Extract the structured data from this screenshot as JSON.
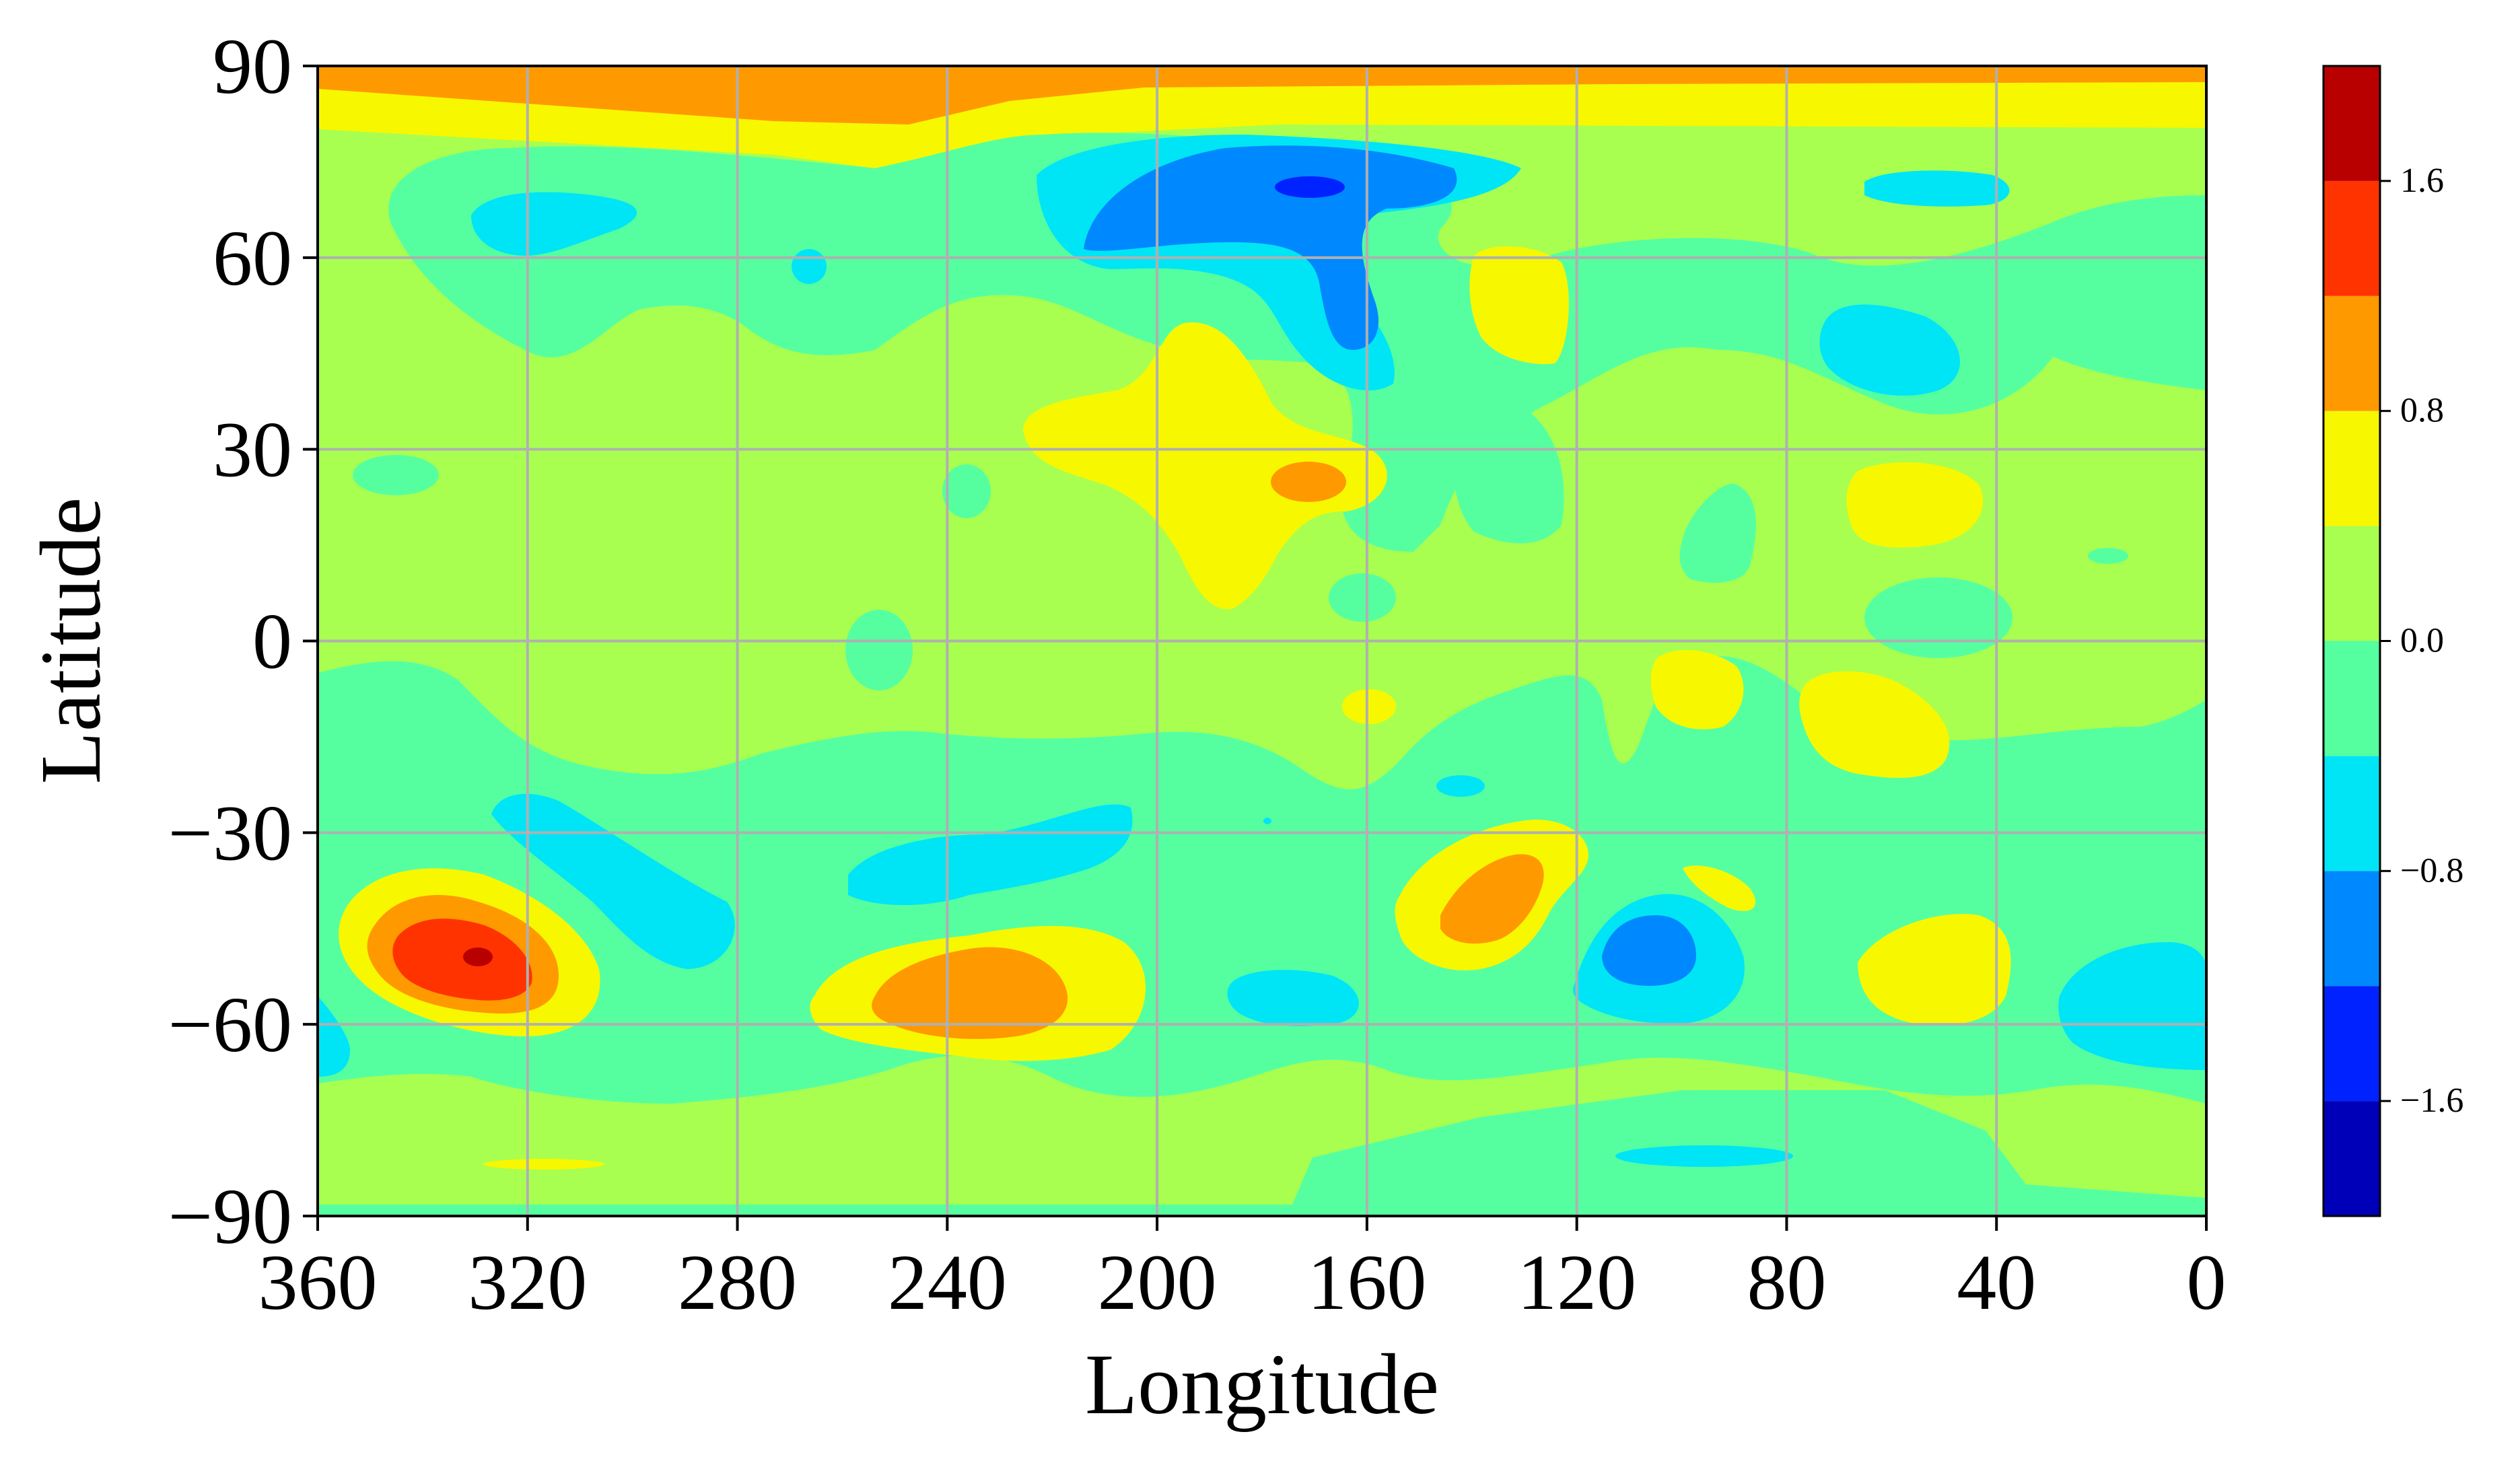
{
  "chart_data": {
    "type": "heatmap",
    "subtype": "filled-contour",
    "title": "",
    "xlabel": "Longitude",
    "ylabel": "Latitude",
    "xlim": [
      360,
      0
    ],
    "ylim": [
      -90,
      90
    ],
    "x_inverted": true,
    "grid": true,
    "xticks": [
      360,
      320,
      280,
      240,
      200,
      160,
      120,
      80,
      40,
      0
    ],
    "xtick_labels": [
      "360",
      "320",
      "280",
      "240",
      "200",
      "160",
      "120",
      "80",
      "40",
      "0"
    ],
    "yticks": [
      90,
      60,
      30,
      0,
      -30,
      -60,
      -90
    ],
    "ytick_labels": [
      "90",
      "60",
      "30",
      "0",
      "−30",
      "−60",
      "−90"
    ],
    "colorbar": {
      "levels": [
        -2.0,
        -1.6,
        -1.2,
        -0.8,
        -0.4,
        0.0,
        0.4,
        0.8,
        1.2,
        1.6,
        2.0
      ],
      "colors": [
        "#0000b8",
        "#0022ff",
        "#0088ff",
        "#00e5f5",
        "#55ffa0",
        "#a8ff50",
        "#f7f700",
        "#ff9900",
        "#ff3300",
        "#b80000"
      ],
      "ticks": [
        1.6,
        0.8,
        0.0,
        -0.8,
        -1.6
      ],
      "tick_labels": [
        "1.6",
        "0.8",
        "0.0",
        "−0.8",
        "−1.6"
      ]
    },
    "background_value": 0.2,
    "regions": [
      {
        "lon": 328,
        "lat": -50,
        "value": 1.8
      },
      {
        "lon": 328,
        "lat": -50,
        "value": 1.4
      },
      {
        "lon": 326,
        "lat": -50,
        "value": 1.0
      },
      {
        "lon": 324,
        "lat": -50,
        "value": 0.6
      },
      {
        "lon": 305,
        "lat": -40,
        "value": -0.6
      },
      {
        "lon": 227,
        "lat": -56,
        "value": 1.0
      },
      {
        "lon": 230,
        "lat": -57,
        "value": 0.6
      },
      {
        "lon": 235,
        "lat": -38,
        "value": -0.6
      },
      {
        "lon": 136,
        "lat": -42,
        "value": 1.0
      },
      {
        "lon": 136,
        "lat": -40,
        "value": 0.6
      },
      {
        "lon": 104,
        "lat": -49,
        "value": -1.0
      },
      {
        "lon": 105,
        "lat": -50,
        "value": -0.6
      },
      {
        "lon": 168,
        "lat": -55,
        "value": -0.6
      },
      {
        "lon": 55,
        "lat": -52,
        "value": 0.6
      },
      {
        "lon": 15,
        "lat": -58,
        "value": -0.6
      },
      {
        "lon": 168,
        "lat": 71,
        "value": -1.8
      },
      {
        "lon": 175,
        "lat": 65,
        "value": -1.0
      },
      {
        "lon": 180,
        "lat": 65,
        "value": -0.6
      },
      {
        "lon": 173,
        "lat": 25,
        "value": 1.0
      },
      {
        "lon": 180,
        "lat": 25,
        "value": 0.6
      },
      {
        "lon": 320,
        "lat": 65,
        "value": -0.6
      },
      {
        "lon": 55,
        "lat": 45,
        "value": -0.6
      },
      {
        "lon": 60,
        "lat": 71,
        "value": -0.6
      },
      {
        "lon": 128,
        "lat": 52,
        "value": 0.6
      },
      {
        "lon": 55,
        "lat": 22,
        "value": 0.6
      },
      {
        "lon": 55,
        "lat": -12,
        "value": 0.6
      },
      {
        "lon": 100,
        "lat": -8,
        "value": 0.6
      },
      {
        "lon": 92,
        "lat": -80,
        "value": -0.6
      },
      {
        "lon": 300,
        "lat": 85,
        "value": 1.0
      }
    ]
  }
}
